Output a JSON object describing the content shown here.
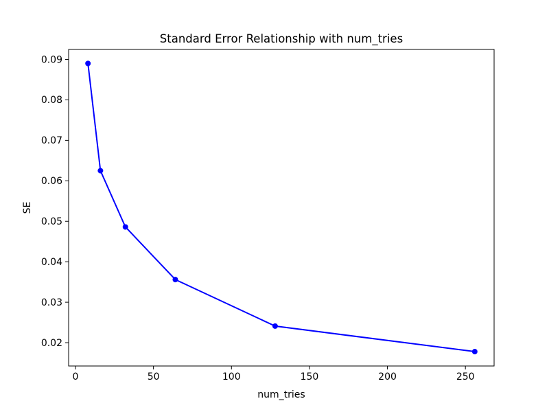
{
  "figure": {
    "background": "#ffffff",
    "text_color": "#000000"
  },
  "chart_data": {
    "type": "line",
    "title": "Standard Error Relationship with num_tries",
    "xlabel": "num_tries",
    "ylabel": "SE",
    "series": [
      {
        "name": "SE",
        "color": "#0000ff",
        "marker": "circle",
        "marker_radius": 4,
        "line_width": 2,
        "x": [
          8,
          16,
          32,
          64,
          128,
          256
        ],
        "y": [
          0.089,
          0.0625,
          0.0486,
          0.0356,
          0.0241,
          0.0178
        ]
      }
    ],
    "xlim": [
      -4.4,
      268.4
    ],
    "ylim": [
      0.01424,
      0.09246
    ],
    "xticks": [
      0,
      50,
      100,
      150,
      200,
      250
    ],
    "xticklabels": [
      "0",
      "50",
      "100",
      "150",
      "200",
      "250"
    ],
    "yticks": [
      0.02,
      0.03,
      0.04,
      0.05,
      0.06,
      0.07,
      0.08,
      0.09
    ],
    "yticklabels": [
      "0.02",
      "0.03",
      "0.04",
      "0.05",
      "0.06",
      "0.07",
      "0.08",
      "0.09"
    ],
    "grid": false,
    "legend_position": "none",
    "spine_color": "#000000"
  }
}
